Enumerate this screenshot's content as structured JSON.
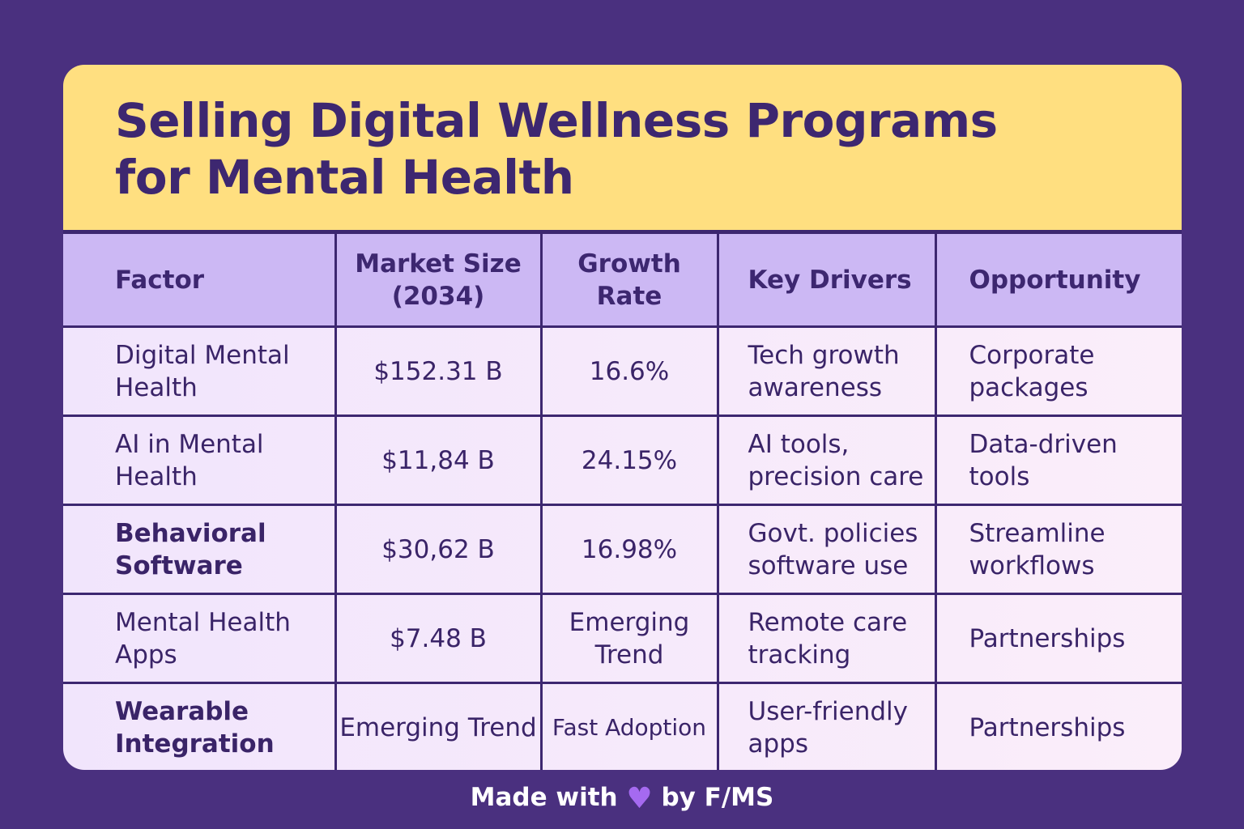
{
  "title": "Selling Digital Wellness Programs for Mental Health",
  "table": {
    "headers": [
      "Factor",
      "Market Size (2034)",
      "Growth Rate",
      "Key Drivers",
      "Opportunity"
    ],
    "rows": [
      {
        "factor": "Digital Mental Health",
        "market_size": "$152.31 B",
        "growth_rate": "16.6%",
        "key_drivers": "Tech growth awareness",
        "opportunity": "Corporate packages"
      },
      {
        "factor": "AI in Mental Health",
        "market_size": "$11,84 B",
        "growth_rate": "24.15%",
        "key_drivers": "AI tools, precision care",
        "opportunity": "Data-driven tools"
      },
      {
        "factor": "Behavioral Software",
        "market_size": "$30,62 B",
        "growth_rate": "16.98%",
        "key_drivers": "Govt. policies software use",
        "opportunity": "Streamline workflows"
      },
      {
        "factor": "Mental Health Apps",
        "market_size": "$7.48 B",
        "growth_rate": "Emerging Trend",
        "key_drivers": "Remote care tracking",
        "opportunity": "Partnerships"
      },
      {
        "factor": "Wearable Integration",
        "market_size": "Emerging Trend",
        "growth_rate": "Fast Adoption",
        "key_drivers": "User-friendly apps",
        "opportunity": "Partnerships"
      }
    ]
  },
  "footer": {
    "before": "Made with",
    "icon": "purple-heart-icon",
    "after": "by F/MS"
  },
  "colors": {
    "background": "#4a307f",
    "title_bg": "#ffdf80",
    "header_bg": "#ccb8f4",
    "text": "#3d2770",
    "heart": "#a56af0"
  }
}
